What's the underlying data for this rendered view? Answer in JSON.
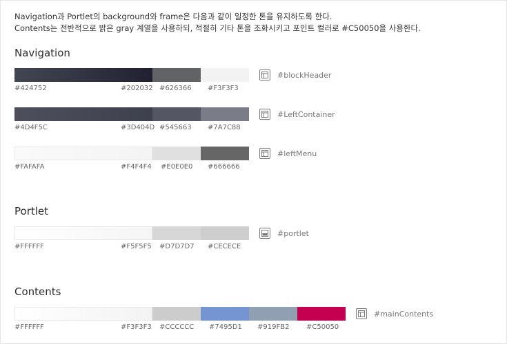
{
  "intro": {
    "line1": "Navigation과 Portlet의 background와 frame은 다음과 같이 일정한 톤을 유지하도록 한다.",
    "line2": "Contents는 전반적으로 밝은 gray 계열을 사용하되, 적절히 기타 톤을 조화시키고 포인트 컬러로 #C50050을 사용한다."
  },
  "sections": {
    "navigation": {
      "title": "Navigation"
    },
    "portlet": {
      "title": "Portlet"
    },
    "contents": {
      "title": "Contents"
    }
  },
  "rows": {
    "blockHeader": {
      "label": "#blockHeader",
      "icon": "layout-header-sidebar-icon",
      "hex": [
        "#424752",
        "#202032",
        "#626366",
        "#F3F3F3"
      ],
      "colors": [
        "#424752",
        "#202032",
        "#626366",
        "#F3F3F3"
      ]
    },
    "leftContainer": {
      "label": "#LeftContainer",
      "icon": "layout-header-sidebar-icon",
      "hex": [
        "#4D4F5C",
        "#3D404D",
        "#545663",
        "#7A7C88"
      ],
      "colors": [
        "#4D4F5C",
        "#3D404D",
        "#545663",
        "#7A7C88"
      ]
    },
    "leftMenu": {
      "label": "#leftMenu",
      "icon": "layout-header-sidebar-icon",
      "hex": [
        "#FAFAFA",
        "#F4F4F4",
        "#E0E0E0",
        "#666666"
      ],
      "colors": [
        "#FAFAFA",
        "#F4F4F4",
        "#E0E0E0",
        "#666666"
      ]
    },
    "portlet": {
      "label": "#portlet",
      "icon": "layout-portlet-icon",
      "hex": [
        "#FFFFFF",
        "#F5F5F5",
        "#D7D7D7",
        "#CECECE"
      ],
      "colors": [
        "#FFFFFF",
        "#F5F5F5",
        "#D7D7D7",
        "#CECECE"
      ]
    },
    "mainContents": {
      "label": "#mainContents",
      "icon": "layout-header-sidebar-icon",
      "hex": [
        "#FFFFFF",
        "#F3F3F3",
        "#CCCCCC",
        "#7495D1",
        "#919FB2",
        "#C50050"
      ],
      "colors": [
        "#FFFFFF",
        "#F3F3F3",
        "#CCCCCC",
        "#7495D1",
        "#919FB2",
        "#C50050"
      ]
    }
  }
}
